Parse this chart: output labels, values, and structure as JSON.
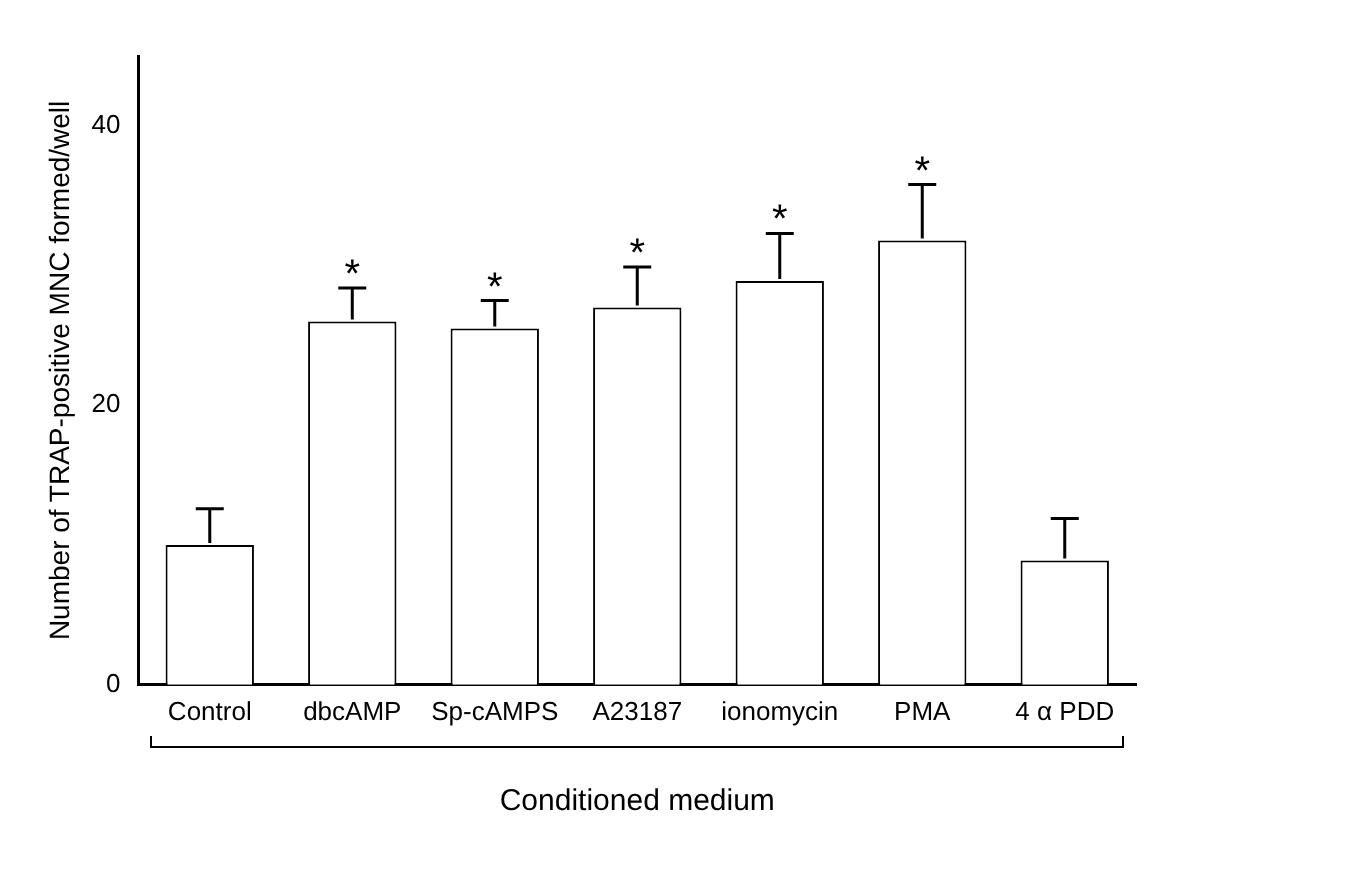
{
  "chart_data": {
    "type": "bar",
    "ylabel": "Number of TRAP-positive MNC formed/well",
    "xlabel": "Conditioned medium",
    "categories": [
      "Control",
      "dbcAMP",
      "Sp-cAMPS",
      "A23187",
      "ionomycin",
      "PMA",
      "4 α PDD"
    ],
    "values": [
      10.0,
      26.0,
      25.5,
      27.0,
      28.9,
      31.8,
      8.9
    ],
    "errors": [
      [
        10.0,
        12.6
      ],
      [
        26.0,
        28.4
      ],
      [
        25.5,
        27.5
      ],
      [
        27.0,
        29.9
      ],
      [
        28.9,
        32.3
      ],
      [
        31.8,
        35.8
      ],
      [
        8.9,
        11.9
      ]
    ],
    "value_labels": [
      null,
      "*",
      "*",
      "*",
      "*",
      "*",
      null
    ],
    "color": "#ffffff",
    "ylim": [
      0,
      45
    ],
    "yticks": [
      0,
      20,
      40
    ],
    "grid": false,
    "legend": false
  }
}
